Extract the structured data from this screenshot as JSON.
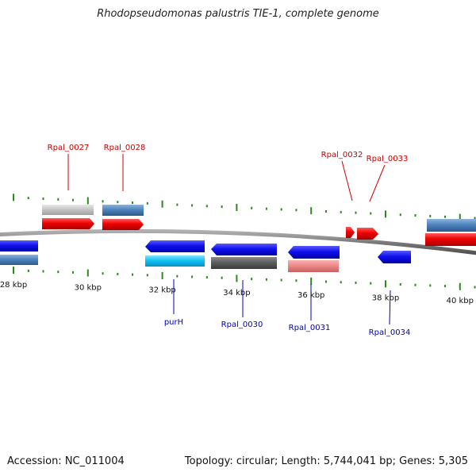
{
  "title": "Rhodopseudomonas palustris TIE-1, complete genome",
  "footer": {
    "accession": "Accession: NC_011004",
    "summary": "Topology: circular; Length: 5,744,041 bp; Genes: 5,305"
  },
  "colors": {
    "background": "#ffffff",
    "backbone": "#808080",
    "tick": "#2a8a1a",
    "forward_label": "#cc0000",
    "reverse_label": "#0000bb",
    "tick_label": "#111111"
  },
  "coordinate_ticks": [
    {
      "kbp": 28,
      "label": "28 kbp"
    },
    {
      "kbp": 30,
      "label": "30 kbp"
    },
    {
      "kbp": 32,
      "label": "32 kbp"
    },
    {
      "kbp": 34,
      "label": "34 kbp"
    },
    {
      "kbp": 36,
      "label": "36 kbp"
    },
    {
      "kbp": 38,
      "label": "38 kbp"
    },
    {
      "kbp": 40,
      "label": "40 kbp"
    }
  ],
  "forward_labels": [
    "Rpal_0027",
    "Rpal_0028",
    "Rpal_0032",
    "Rpal_0033"
  ],
  "reverse_labels": [
    "purH",
    "Rpal_0030",
    "Rpal_0031",
    "Rpal_0034"
  ]
}
